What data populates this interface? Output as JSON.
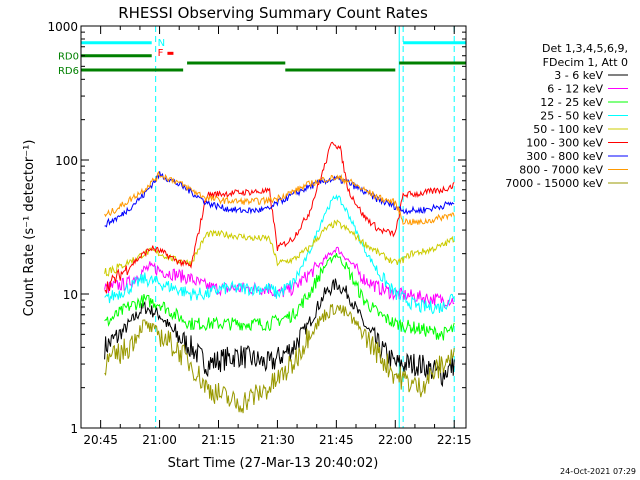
{
  "chart_data": {
    "type": "line",
    "title": "RHESSI Observing Summary Count Rates",
    "xlabel": "Start Time (27-Mar-13 20:40:02)",
    "ylabel": "Count Rate (s⁻¹ detector⁻¹)",
    "x_range_minutes": [
      40,
      138
    ],
    "xticks": [
      {
        "m": 45,
        "label": "20:45"
      },
      {
        "m": 60,
        "label": "21:00"
      },
      {
        "m": 75,
        "label": "21:15"
      },
      {
        "m": 90,
        "label": "21:30"
      },
      {
        "m": 105,
        "label": "21:45"
      },
      {
        "m": 120,
        "label": "22:00"
      },
      {
        "m": 135,
        "label": "22:15"
      }
    ],
    "yscale": "log",
    "ylim": [
      1,
      1000
    ],
    "yticks": [
      {
        "v": 1,
        "label": "1"
      },
      {
        "v": 10,
        "label": "10"
      },
      {
        "v": 100,
        "label": "100"
      },
      {
        "v": 1000,
        "label": "1000"
      }
    ],
    "grid": false,
    "legend_header": [
      "Det 1,3,4,5,6,9,",
      "FDecim 1, Att 0"
    ],
    "series": [
      {
        "name": "3 - 6 keV",
        "color": "#000000",
        "key": "3_6",
        "points": [
          [
            46,
            4
          ],
          [
            50,
            5
          ],
          [
            56,
            8
          ],
          [
            60,
            7
          ],
          [
            64,
            5
          ],
          [
            68,
            4
          ],
          [
            72,
            3
          ],
          [
            80,
            3.5
          ],
          [
            88,
            3
          ],
          [
            94,
            4
          ],
          [
            98,
            6
          ],
          [
            102,
            10
          ],
          [
            105,
            12
          ],
          [
            108,
            10
          ],
          [
            112,
            6
          ],
          [
            116,
            4
          ],
          [
            120,
            3
          ],
          [
            126,
            3
          ],
          [
            132,
            2.5
          ],
          [
            135,
            3
          ]
        ]
      },
      {
        "name": "6 - 12 keV",
        "color": "#ff00ff",
        "key": "6_12",
        "points": [
          [
            46,
            11
          ],
          [
            52,
            12
          ],
          [
            56,
            15
          ],
          [
            58,
            16
          ],
          [
            60,
            15
          ],
          [
            64,
            14
          ],
          [
            68,
            13
          ],
          [
            70,
            12
          ],
          [
            74,
            11
          ],
          [
            80,
            11
          ],
          [
            88,
            11
          ],
          [
            90,
            10
          ],
          [
            94,
            11
          ],
          [
            98,
            14
          ],
          [
            102,
            18
          ],
          [
            105,
            22
          ],
          [
            108,
            18
          ],
          [
            112,
            13
          ],
          [
            116,
            11
          ],
          [
            120,
            10
          ],
          [
            126,
            9.5
          ],
          [
            132,
            9
          ],
          [
            135,
            9
          ]
        ]
      },
      {
        "name": "12 - 25 keV",
        "color": "#00ff00",
        "key": "12_25",
        "points": [
          [
            46,
            6
          ],
          [
            52,
            8
          ],
          [
            56,
            9
          ],
          [
            60,
            8.5
          ],
          [
            64,
            7
          ],
          [
            68,
            6
          ],
          [
            72,
            6
          ],
          [
            80,
            6
          ],
          [
            88,
            6
          ],
          [
            94,
            7
          ],
          [
            98,
            10
          ],
          [
            102,
            16
          ],
          [
            105,
            20
          ],
          [
            108,
            15
          ],
          [
            112,
            9
          ],
          [
            116,
            7
          ],
          [
            120,
            6
          ],
          [
            126,
            5.5
          ],
          [
            132,
            5
          ],
          [
            135,
            5.5
          ]
        ]
      },
      {
        "name": "25 - 50 keV",
        "color": "#00ffff",
        "key": "25_50",
        "points": [
          [
            46,
            9
          ],
          [
            52,
            11
          ],
          [
            56,
            13
          ],
          [
            60,
            12
          ],
          [
            64,
            11
          ],
          [
            68,
            10
          ],
          [
            72,
            10
          ],
          [
            76,
            11
          ],
          [
            80,
            11
          ],
          [
            88,
            11
          ],
          [
            90,
            10
          ],
          [
            94,
            12
          ],
          [
            98,
            20
          ],
          [
            102,
            40
          ],
          [
            105,
            55
          ],
          [
            108,
            40
          ],
          [
            112,
            22
          ],
          [
            116,
            14
          ],
          [
            120,
            10
          ],
          [
            126,
            8
          ],
          [
            132,
            8
          ],
          [
            135,
            10
          ]
        ]
      },
      {
        "name": "50 - 100 keV",
        "color": "#cccc00",
        "key": "50_100",
        "points": [
          [
            46,
            15
          ],
          [
            50,
            16
          ],
          [
            56,
            20
          ],
          [
            58,
            21
          ],
          [
            60,
            20
          ],
          [
            64,
            18
          ],
          [
            68,
            17
          ],
          [
            72,
            28
          ],
          [
            76,
            28
          ],
          [
            80,
            27
          ],
          [
            84,
            26
          ],
          [
            88,
            26
          ],
          [
            90,
            17
          ],
          [
            94,
            18
          ],
          [
            98,
            22
          ],
          [
            102,
            30
          ],
          [
            105,
            34
          ],
          [
            108,
            30
          ],
          [
            112,
            24
          ],
          [
            116,
            20
          ],
          [
            120,
            17
          ],
          [
            122,
            18
          ],
          [
            124,
            20
          ],
          [
            128,
            21
          ],
          [
            132,
            23
          ],
          [
            135,
            26
          ]
        ]
      },
      {
        "name": "100 - 300 keV",
        "color": "#ff0000",
        "key": "100_300",
        "points": [
          [
            46,
            11
          ],
          [
            50,
            14
          ],
          [
            56,
            20
          ],
          [
            58,
            22
          ],
          [
            60,
            21
          ],
          [
            64,
            18
          ],
          [
            68,
            16
          ],
          [
            72,
            55
          ],
          [
            76,
            56
          ],
          [
            80,
            57
          ],
          [
            84,
            58
          ],
          [
            88,
            58
          ],
          [
            90,
            22
          ],
          [
            94,
            26
          ],
          [
            98,
            40
          ],
          [
            102,
            90
          ],
          [
            104,
            140
          ],
          [
            106,
            120
          ],
          [
            108,
            60
          ],
          [
            112,
            38
          ],
          [
            116,
            30
          ],
          [
            120,
            28
          ],
          [
            122,
            55
          ],
          [
            126,
            56
          ],
          [
            132,
            60
          ],
          [
            135,
            65
          ]
        ]
      },
      {
        "name": "300 - 800 keV",
        "color": "#0000ff",
        "key": "300_800",
        "points": [
          [
            46,
            33
          ],
          [
            50,
            38
          ],
          [
            56,
            55
          ],
          [
            60,
            78
          ],
          [
            64,
            68
          ],
          [
            68,
            58
          ],
          [
            72,
            48
          ],
          [
            76,
            44
          ],
          [
            80,
            42
          ],
          [
            84,
            42
          ],
          [
            88,
            43
          ],
          [
            90,
            48
          ],
          [
            94,
            55
          ],
          [
            98,
            63
          ],
          [
            102,
            70
          ],
          [
            105,
            72
          ],
          [
            108,
            68
          ],
          [
            112,
            58
          ],
          [
            116,
            50
          ],
          [
            120,
            45
          ],
          [
            122,
            42
          ],
          [
            126,
            42
          ],
          [
            130,
            44
          ],
          [
            135,
            48
          ]
        ]
      },
      {
        "name": "800 - 7000 keV",
        "color": "#ff9900",
        "key": "800_7000",
        "points": [
          [
            46,
            38
          ],
          [
            50,
            45
          ],
          [
            56,
            60
          ],
          [
            60,
            78
          ],
          [
            64,
            70
          ],
          [
            68,
            60
          ],
          [
            72,
            52
          ],
          [
            76,
            50
          ],
          [
            80,
            49
          ],
          [
            84,
            49
          ],
          [
            88,
            50
          ],
          [
            90,
            52
          ],
          [
            94,
            58
          ],
          [
            98,
            66
          ],
          [
            102,
            72
          ],
          [
            105,
            74
          ],
          [
            108,
            70
          ],
          [
            112,
            60
          ],
          [
            116,
            52
          ],
          [
            120,
            48
          ],
          [
            122,
            35
          ],
          [
            126,
            34
          ],
          [
            130,
            36
          ],
          [
            135,
            40
          ]
        ]
      },
      {
        "name": "7000 - 15000 keV",
        "color": "#999900",
        "key": "7000_15000",
        "points": [
          [
            46,
            3
          ],
          [
            52,
            4
          ],
          [
            56,
            6
          ],
          [
            60,
            5
          ],
          [
            64,
            4
          ],
          [
            68,
            3
          ],
          [
            72,
            2
          ],
          [
            80,
            1.5
          ],
          [
            88,
            2
          ],
          [
            94,
            3
          ],
          [
            98,
            5
          ],
          [
            102,
            7
          ],
          [
            105,
            8
          ],
          [
            108,
            7
          ],
          [
            112,
            5
          ],
          [
            116,
            3.5
          ],
          [
            120,
            2.5
          ],
          [
            126,
            2
          ],
          [
            132,
            3
          ],
          [
            135,
            3.5
          ]
        ]
      }
    ],
    "night_intervals": [
      [
        40,
        59
      ],
      [
        122,
        135
      ]
    ],
    "saa_intervals": [
      [
        40,
        44
      ],
      [
        121,
        123
      ]
    ],
    "segments": [
      {
        "label": "RD0",
        "level": 600,
        "from": 40,
        "to": 58
      },
      {
        "label": "RD6",
        "level": 470,
        "from": 40,
        "to": 66
      },
      {
        "label": "",
        "level": 530,
        "from": 67,
        "to": 92
      },
      {
        "label": "",
        "level": 470,
        "from": 92,
        "to": 120
      },
      {
        "label": "",
        "level": 530,
        "from": 121,
        "to": 138
      }
    ],
    "top_bars": [
      {
        "from": 40,
        "to": 58,
        "level": 750,
        "color": "#00ffff"
      },
      {
        "from": 122,
        "to": 138,
        "level": 750,
        "color": "#00ffff"
      }
    ],
    "flags": [
      {
        "label": "N",
        "m": 59.5,
        "level": 760,
        "color": "#00ffff"
      },
      {
        "label": "F",
        "m": 59.5,
        "level": 640,
        "color": "#ff0000"
      }
    ],
    "red_mark": {
      "m": 62,
      "level": 620
    }
  },
  "footer_date": "24-Oct-2021 07:29"
}
